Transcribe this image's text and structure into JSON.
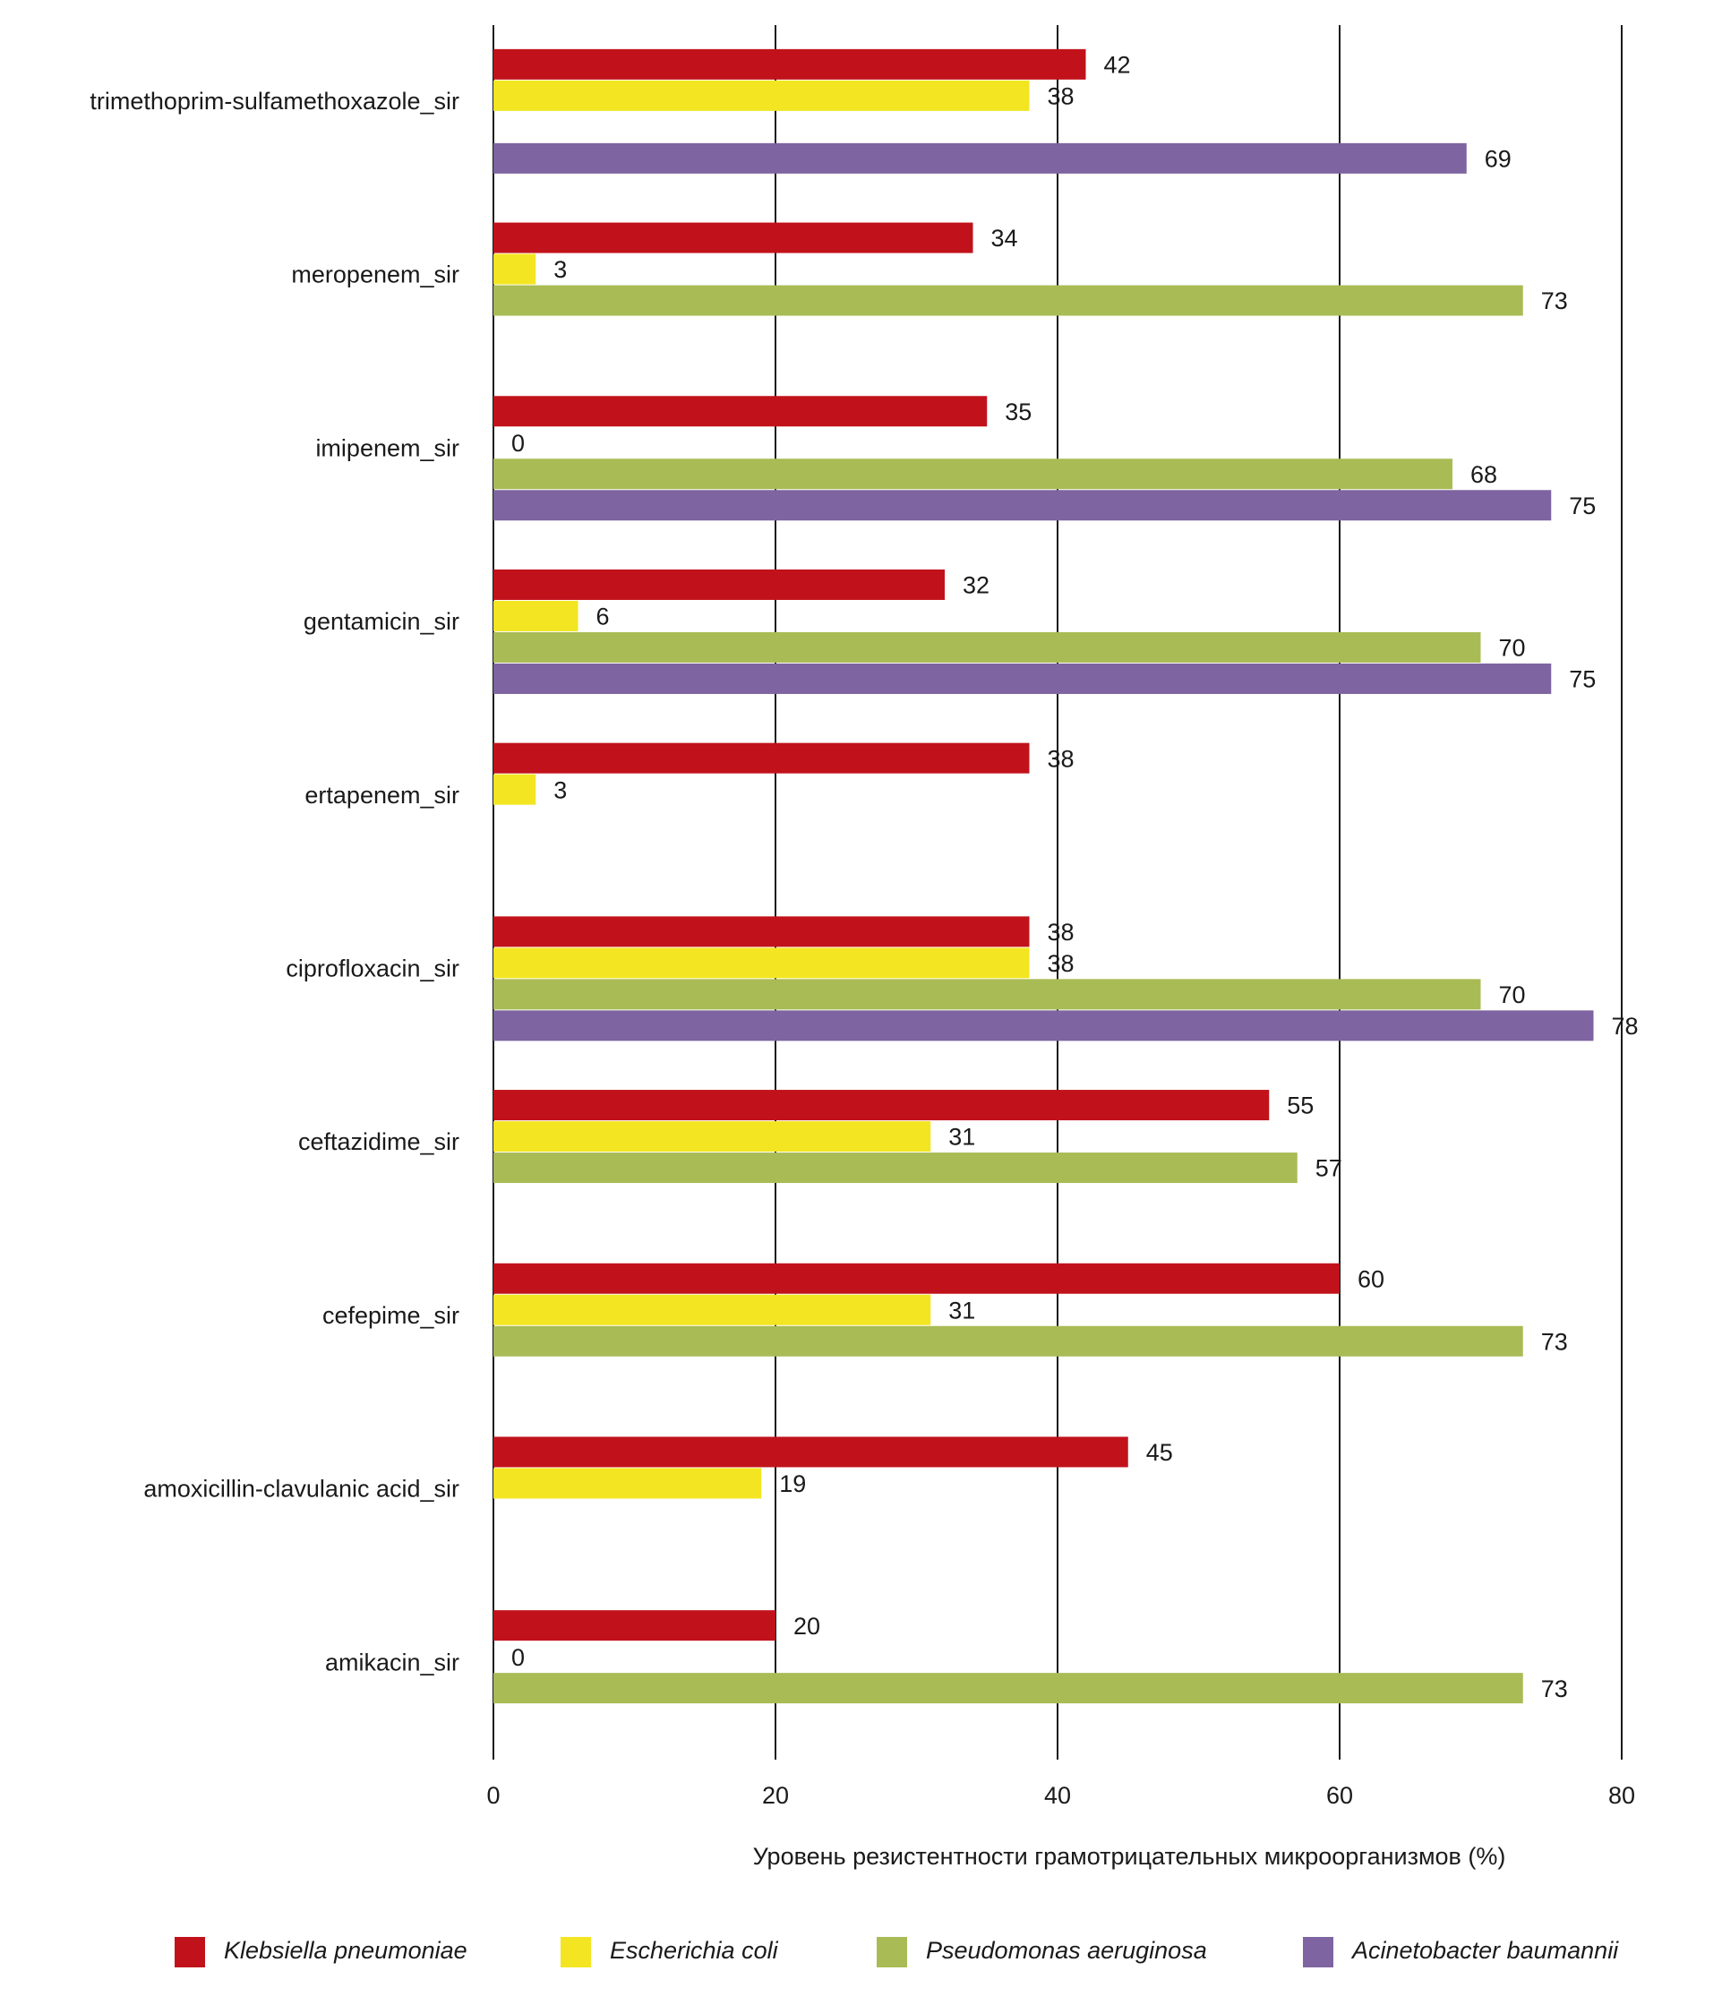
{
  "chart_data": {
    "type": "bar",
    "orientation": "horizontal",
    "categories": [
      "trimethoprim-sulfamethoxazole_sir",
      "meropenem_sir",
      "imipenem_sir",
      "gentamicin_sir",
      "ertapenem_sir",
      "ciprofloxacin_sir",
      "ceftazidime_sir",
      "cefepime_sir",
      "amoxicillin-clavulanic acid_sir",
      "amikacin_sir"
    ],
    "series": [
      {
        "name": "Klebsiella pneumoniae",
        "color": "#c1121b",
        "values": [
          42,
          34,
          35,
          32,
          38,
          38,
          55,
          60,
          45,
          20
        ]
      },
      {
        "name": "Escherichia coli",
        "color": "#f3e521",
        "values": [
          38,
          3,
          0,
          6,
          3,
          38,
          31,
          31,
          19,
          0
        ]
      },
      {
        "name": "Pseudomonas aeruginosa",
        "color": "#a9bb55",
        "values": [
          null,
          73,
          68,
          70,
          null,
          70,
          57,
          73,
          null,
          73
        ]
      },
      {
        "name": "Acinetobacter baumannii",
        "color": "#7e64a0",
        "values": [
          69,
          null,
          75,
          75,
          null,
          78,
          null,
          null,
          null,
          null
        ]
      }
    ],
    "xlabel": "Уровень резистентности грамотрицательных микроорганизмов (%)",
    "xlim": [
      0,
      80
    ],
    "xticks": [
      0,
      20,
      40,
      60,
      80
    ],
    "grid": true,
    "data_labels": true,
    "legend": "bottom"
  }
}
